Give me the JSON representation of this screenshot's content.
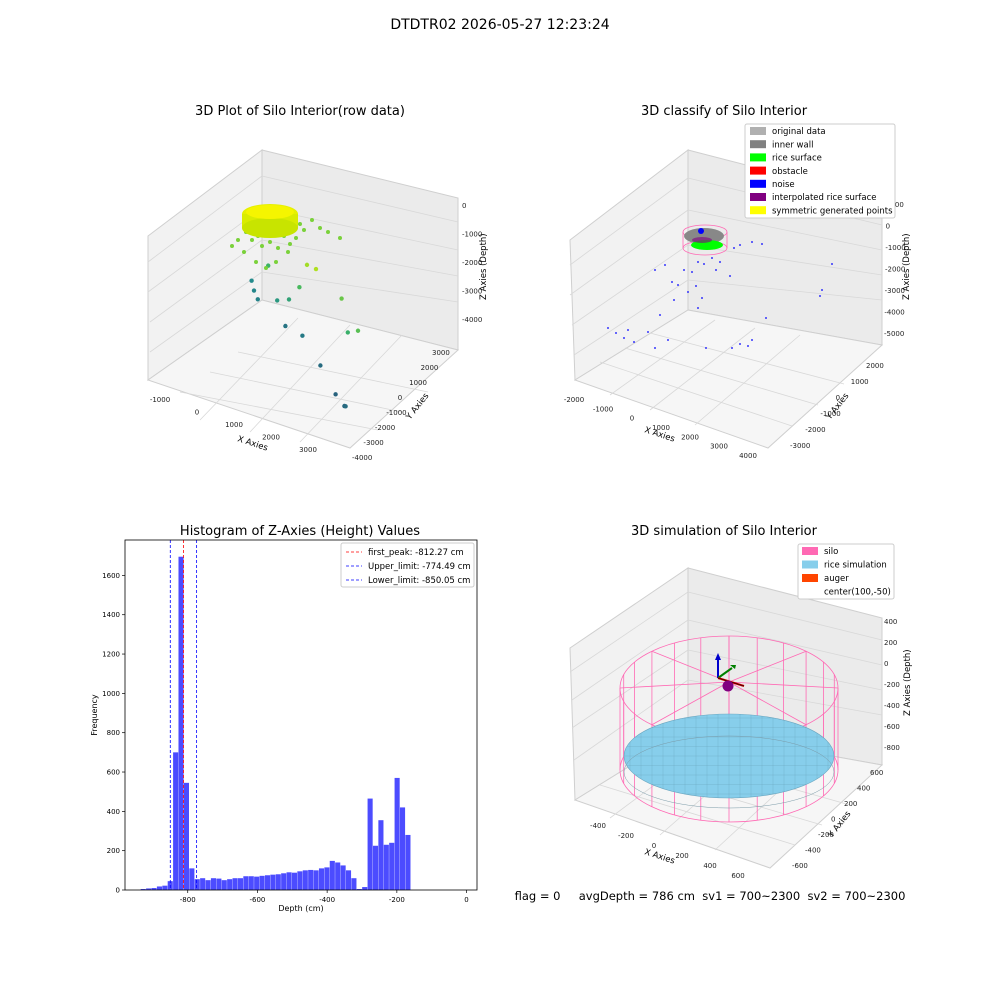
{
  "figure": {
    "suptitle": "DTDTR02 2026-05-27 12:23:24",
    "footer": "flag = 0     avgDepth = 786 cm  sv1 = 700~2300  sv2 = 700~2300"
  },
  "colors": {
    "pane": "#f2f2f2",
    "grid": "#d8d8d8",
    "hist_bar": "#0000ff",
    "first_peak": "#ff0000",
    "limit_line": "#0000ff",
    "silo": "#ff69b4",
    "rice": "#87ceeb",
    "auger": "#ff4500"
  },
  "chart_data": [
    {
      "type": "scatter",
      "view": "3d",
      "title": "3D Plot of Silo Interior(row data)",
      "xlabel": "X Axies",
      "ylabel": "Y Axies",
      "zlabel": "Z Axies (Depth)",
      "x_ticks": [
        "-1000",
        "0",
        "1000",
        "2000",
        "3000"
      ],
      "y_ticks": [
        "-4000",
        "-3000",
        "-2000",
        "-1000",
        "0",
        "1000",
        "2000",
        "3000"
      ],
      "z_ticks": [
        "-4000",
        "-3000",
        "-2000",
        "-1000",
        "0"
      ],
      "xlim": [
        -1400,
        3600
      ],
      "ylim": [
        -4200,
        3300
      ],
      "zlim": [
        -4600,
        300
      ],
      "colormap": "viridis-like (depth)",
      "description_points": [
        {
          "x": 300,
          "y": -300,
          "z": -100,
          "group": "dense"
        },
        {
          "x": -1100,
          "y": 2200,
          "z": -3400
        },
        {
          "x": -900,
          "y": 1800,
          "z": -3500
        },
        {
          "x": -700,
          "y": 1500,
          "z": -3600
        },
        {
          "x": 200,
          "y": 900,
          "z": -3900
        },
        {
          "x": 800,
          "y": 400,
          "z": -3800
        },
        {
          "x": 1600,
          "y": -600,
          "z": -4100
        },
        {
          "x": 2400,
          "y": -1800,
          "z": -4300
        },
        {
          "x": 2900,
          "y": -2600,
          "z": -4200
        },
        {
          "x": 3000,
          "y": -2800,
          "z": -4100
        },
        {
          "x": 2600,
          "y": -1500,
          "z": -2300
        },
        {
          "x": 3100,
          "y": -2200,
          "z": -1800
        },
        {
          "x": 2200,
          "y": -800,
          "z": -1600
        },
        {
          "x": 500,
          "y": 300,
          "z": -2700
        },
        {
          "x": 100,
          "y": 600,
          "z": -3000
        },
        {
          "x": 900,
          "y": -100,
          "z": -2000
        },
        {
          "x": 1300,
          "y": -700,
          "z": -900
        },
        {
          "x": 1700,
          "y": -1200,
          "z": -700
        },
        {
          "x": -300,
          "y": 1100,
          "z": -2200
        }
      ]
    },
    {
      "type": "scatter",
      "view": "3d",
      "title": "3D classify of Silo Interior",
      "xlabel": "X Axies",
      "ylabel": "Y Axies",
      "zlabel": "Z Axies (Depth)",
      "x_ticks": [
        "-2000",
        "-1000",
        "0",
        "1000",
        "2000",
        "3000",
        "4000"
      ],
      "y_ticks": [
        "-3000",
        "-2000",
        "-1000",
        "0",
        "1000",
        "2000"
      ],
      "z_ticks": [
        "-5000",
        "-4000",
        "-3000",
        "-2000",
        "-1000",
        "0",
        "1000"
      ],
      "legend_position": "top-right",
      "legend": [
        {
          "label": "original data",
          "color": "#b0b0b0"
        },
        {
          "label": "inner wall",
          "color": "#808080"
        },
        {
          "label": "rice surface",
          "color": "#00ff00"
        },
        {
          "label": "obstacle",
          "color": "#ff0000"
        },
        {
          "label": "noise",
          "color": "#0000ff"
        },
        {
          "label": "interpolated rice surface",
          "color": "#800080"
        },
        {
          "label": "symmetric generated points",
          "color": "#ffff00"
        }
      ]
    },
    {
      "type": "bar",
      "title": "Histogram of Z-Axies (Height) Values",
      "xlabel": "Depth (cm)",
      "ylabel": "Frequency",
      "xlim": [
        -980,
        30
      ],
      "ylim": [
        0,
        1780
      ],
      "x_ticks": [
        -800,
        -600,
        -400,
        -200,
        0
      ],
      "y_ticks": [
        0,
        200,
        400,
        600,
        800,
        1000,
        1200,
        1400,
        1600
      ],
      "bin_width": 15.5,
      "bins": [
        {
          "start": -935,
          "value": 5
        },
        {
          "start": -919.5,
          "value": 8
        },
        {
          "start": -904,
          "value": 10
        },
        {
          "start": -888.5,
          "value": 18
        },
        {
          "start": -873,
          "value": 22
        },
        {
          "start": -857.5,
          "value": 45
        },
        {
          "start": -842,
          "value": 700
        },
        {
          "start": -826.5,
          "value": 1695
        },
        {
          "start": -811,
          "value": 545
        },
        {
          "start": -795.5,
          "value": 110
        },
        {
          "start": -780,
          "value": 55
        },
        {
          "start": -764.5,
          "value": 60
        },
        {
          "start": -749,
          "value": 50
        },
        {
          "start": -733.5,
          "value": 60
        },
        {
          "start": -718,
          "value": 58
        },
        {
          "start": -702.5,
          "value": 50
        },
        {
          "start": -687,
          "value": 55
        },
        {
          "start": -671.5,
          "value": 60
        },
        {
          "start": -656,
          "value": 60
        },
        {
          "start": -640.5,
          "value": 70
        },
        {
          "start": -625,
          "value": 70
        },
        {
          "start": -609.5,
          "value": 68
        },
        {
          "start": -594,
          "value": 72
        },
        {
          "start": -578.5,
          "value": 75
        },
        {
          "start": -563,
          "value": 78
        },
        {
          "start": -547.5,
          "value": 80
        },
        {
          "start": -532,
          "value": 85
        },
        {
          "start": -516.5,
          "value": 90
        },
        {
          "start": -501,
          "value": 88
        },
        {
          "start": -485.5,
          "value": 95
        },
        {
          "start": -470,
          "value": 100
        },
        {
          "start": -454.5,
          "value": 102
        },
        {
          "start": -439,
          "value": 100
        },
        {
          "start": -423.5,
          "value": 110
        },
        {
          "start": -408,
          "value": 115
        },
        {
          "start": -392.5,
          "value": 148
        },
        {
          "start": -377,
          "value": 140
        },
        {
          "start": -361.5,
          "value": 125
        },
        {
          "start": -346,
          "value": 100
        },
        {
          "start": -330.5,
          "value": 60
        },
        {
          "start": -315,
          "value": 5
        },
        {
          "start": -299.5,
          "value": 15
        },
        {
          "start": -284,
          "value": 465
        },
        {
          "start": -268.5,
          "value": 225
        },
        {
          "start": -253,
          "value": 355
        },
        {
          "start": -237.5,
          "value": 230
        },
        {
          "start": -222,
          "value": 240
        },
        {
          "start": -206.5,
          "value": 570
        },
        {
          "start": -191,
          "value": 420
        },
        {
          "start": -175.5,
          "value": 280
        }
      ],
      "vlines": [
        {
          "name": "first_peak: -812.27 cm",
          "x": -812.27,
          "color": "#ff0000"
        },
        {
          "name": "Upper_limit: -774.49 cm",
          "x": -774.49,
          "color": "#0000ff"
        },
        {
          "name": "Lower_limit: -850.05 cm",
          "x": -850.05,
          "color": "#0000ff"
        }
      ],
      "legend_position": "top-right"
    },
    {
      "type": "area",
      "view": "3d",
      "title": "3D simulation of Silo Interior",
      "xlabel": "X Axies",
      "ylabel": "Y Axies",
      "zlabel": "Z Axies (Depth)",
      "x_ticks": [
        "-400",
        "-200",
        "0",
        "200",
        "400",
        "600"
      ],
      "y_ticks": [
        "-600",
        "-400",
        "-200",
        "0",
        "200",
        "400",
        "600"
      ],
      "z_ticks": [
        "-800",
        "-600",
        "-400",
        "-200",
        "0",
        "200",
        "400"
      ],
      "legend_position": "top-right",
      "legend": [
        {
          "label": "silo",
          "color": "#ff69b4"
        },
        {
          "label": "rice simulation",
          "color": "#87ceeb"
        },
        {
          "label": "auger",
          "color": "#ff4500"
        },
        {
          "label": "center(100,-50)",
          "color": ""
        }
      ]
    }
  ]
}
